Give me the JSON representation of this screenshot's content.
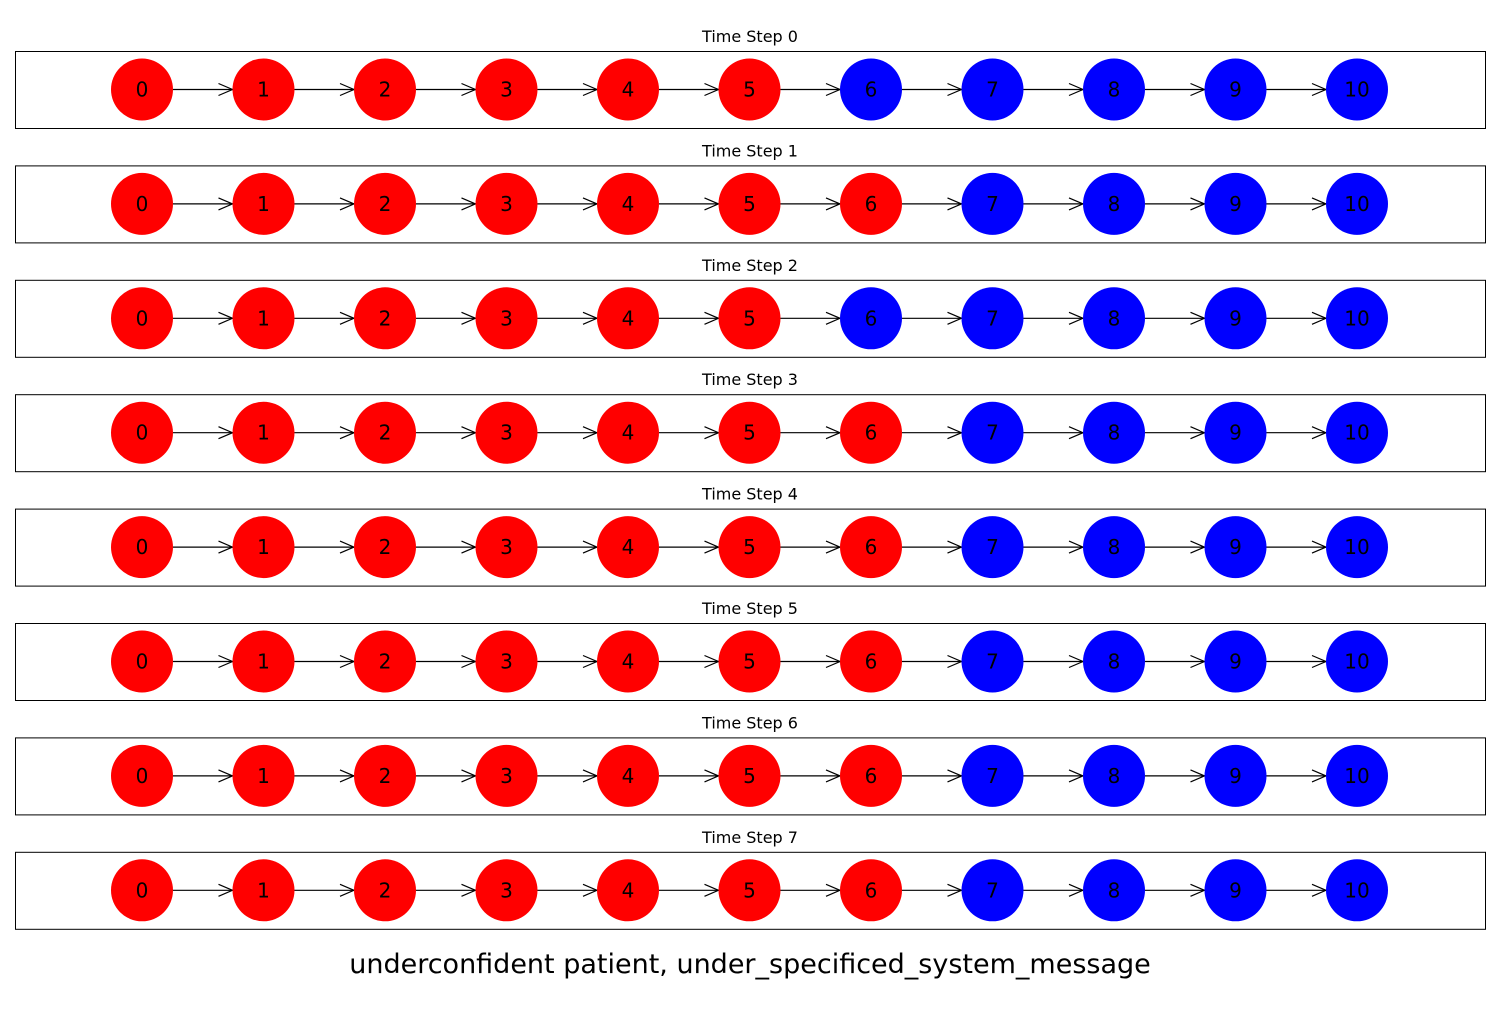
{
  "figure": {
    "caption": "underconfident patient, under_specificed_system_message"
  },
  "palette": {
    "red": "#ff0000",
    "blue": "#0000ff"
  },
  "node_labels": [
    "0",
    "1",
    "2",
    "3",
    "4",
    "5",
    "6",
    "7",
    "8",
    "9",
    "10"
  ],
  "chart_data": {
    "type": "network",
    "title": "underconfident patient, under_specificed_system_message",
    "graph": "directed chain 0 -> 1 -> 2 -> 3 -> 4 -> 5 -> 6 -> 7 -> 8 -> 9 -> 10",
    "time_steps": [
      {
        "title": "Time Step 0",
        "node_colors": [
          "red",
          "red",
          "red",
          "red",
          "red",
          "red",
          "blue",
          "blue",
          "blue",
          "blue",
          "blue"
        ]
      },
      {
        "title": "Time Step 1",
        "node_colors": [
          "red",
          "red",
          "red",
          "red",
          "red",
          "red",
          "red",
          "blue",
          "blue",
          "blue",
          "blue"
        ]
      },
      {
        "title": "Time Step 2",
        "node_colors": [
          "red",
          "red",
          "red",
          "red",
          "red",
          "red",
          "blue",
          "blue",
          "blue",
          "blue",
          "blue"
        ]
      },
      {
        "title": "Time Step 3",
        "node_colors": [
          "red",
          "red",
          "red",
          "red",
          "red",
          "red",
          "red",
          "blue",
          "blue",
          "blue",
          "blue"
        ]
      },
      {
        "title": "Time Step 4",
        "node_colors": [
          "red",
          "red",
          "red",
          "red",
          "red",
          "red",
          "red",
          "blue",
          "blue",
          "blue",
          "blue"
        ]
      },
      {
        "title": "Time Step 5",
        "node_colors": [
          "red",
          "red",
          "red",
          "red",
          "red",
          "red",
          "red",
          "blue",
          "blue",
          "blue",
          "blue"
        ]
      },
      {
        "title": "Time Step 6",
        "node_colors": [
          "red",
          "red",
          "red",
          "red",
          "red",
          "red",
          "red",
          "blue",
          "blue",
          "blue",
          "blue"
        ]
      },
      {
        "title": "Time Step 7",
        "node_colors": [
          "red",
          "red",
          "red",
          "red",
          "red",
          "red",
          "red",
          "blue",
          "blue",
          "blue",
          "blue"
        ]
      }
    ]
  }
}
